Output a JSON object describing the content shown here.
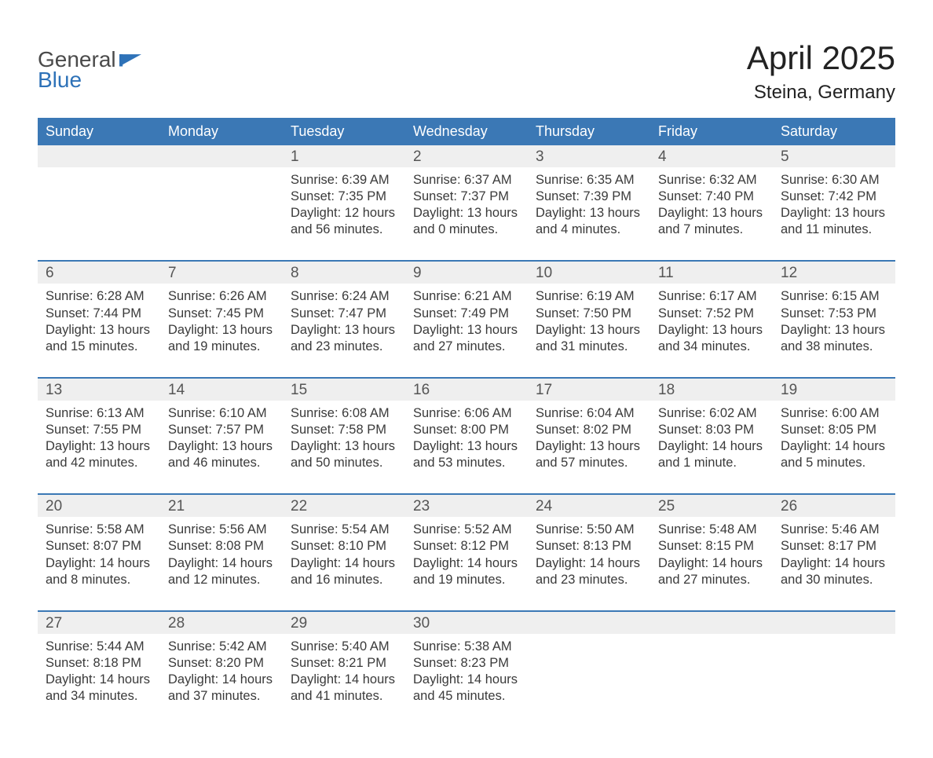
{
  "brand": {
    "word1": "General",
    "word2": "Blue"
  },
  "title": {
    "month": "April 2025",
    "location": "Steina, Germany"
  },
  "colors": {
    "header_bg": "#3b78b5",
    "header_text": "#ffffff",
    "daynum_bg": "#efefef",
    "week_divider": "#3b78b5",
    "text": "#3a3a3a",
    "brand_blue": "#2e72b8",
    "brand_gray": "#4a4a4a",
    "background": "#ffffff"
  },
  "days_of_week": [
    "Sunday",
    "Monday",
    "Tuesday",
    "Wednesday",
    "Thursday",
    "Friday",
    "Saturday"
  ],
  "weeks": [
    [
      {
        "num": "",
        "lines": [
          "",
          "",
          "",
          ""
        ]
      },
      {
        "num": "",
        "lines": [
          "",
          "",
          "",
          ""
        ]
      },
      {
        "num": "1",
        "lines": [
          "Sunrise: 6:39 AM",
          "Sunset: 7:35 PM",
          "Daylight: 12 hours",
          "and 56 minutes."
        ]
      },
      {
        "num": "2",
        "lines": [
          "Sunrise: 6:37 AM",
          "Sunset: 7:37 PM",
          "Daylight: 13 hours",
          "and 0 minutes."
        ]
      },
      {
        "num": "3",
        "lines": [
          "Sunrise: 6:35 AM",
          "Sunset: 7:39 PM",
          "Daylight: 13 hours",
          "and 4 minutes."
        ]
      },
      {
        "num": "4",
        "lines": [
          "Sunrise: 6:32 AM",
          "Sunset: 7:40 PM",
          "Daylight: 13 hours",
          "and 7 minutes."
        ]
      },
      {
        "num": "5",
        "lines": [
          "Sunrise: 6:30 AM",
          "Sunset: 7:42 PM",
          "Daylight: 13 hours",
          "and 11 minutes."
        ]
      }
    ],
    [
      {
        "num": "6",
        "lines": [
          "Sunrise: 6:28 AM",
          "Sunset: 7:44 PM",
          "Daylight: 13 hours",
          "and 15 minutes."
        ]
      },
      {
        "num": "7",
        "lines": [
          "Sunrise: 6:26 AM",
          "Sunset: 7:45 PM",
          "Daylight: 13 hours",
          "and 19 minutes."
        ]
      },
      {
        "num": "8",
        "lines": [
          "Sunrise: 6:24 AM",
          "Sunset: 7:47 PM",
          "Daylight: 13 hours",
          "and 23 minutes."
        ]
      },
      {
        "num": "9",
        "lines": [
          "Sunrise: 6:21 AM",
          "Sunset: 7:49 PM",
          "Daylight: 13 hours",
          "and 27 minutes."
        ]
      },
      {
        "num": "10",
        "lines": [
          "Sunrise: 6:19 AM",
          "Sunset: 7:50 PM",
          "Daylight: 13 hours",
          "and 31 minutes."
        ]
      },
      {
        "num": "11",
        "lines": [
          "Sunrise: 6:17 AM",
          "Sunset: 7:52 PM",
          "Daylight: 13 hours",
          "and 34 minutes."
        ]
      },
      {
        "num": "12",
        "lines": [
          "Sunrise: 6:15 AM",
          "Sunset: 7:53 PM",
          "Daylight: 13 hours",
          "and 38 minutes."
        ]
      }
    ],
    [
      {
        "num": "13",
        "lines": [
          "Sunrise: 6:13 AM",
          "Sunset: 7:55 PM",
          "Daylight: 13 hours",
          "and 42 minutes."
        ]
      },
      {
        "num": "14",
        "lines": [
          "Sunrise: 6:10 AM",
          "Sunset: 7:57 PM",
          "Daylight: 13 hours",
          "and 46 minutes."
        ]
      },
      {
        "num": "15",
        "lines": [
          "Sunrise: 6:08 AM",
          "Sunset: 7:58 PM",
          "Daylight: 13 hours",
          "and 50 minutes."
        ]
      },
      {
        "num": "16",
        "lines": [
          "Sunrise: 6:06 AM",
          "Sunset: 8:00 PM",
          "Daylight: 13 hours",
          "and 53 minutes."
        ]
      },
      {
        "num": "17",
        "lines": [
          "Sunrise: 6:04 AM",
          "Sunset: 8:02 PM",
          "Daylight: 13 hours",
          "and 57 minutes."
        ]
      },
      {
        "num": "18",
        "lines": [
          "Sunrise: 6:02 AM",
          "Sunset: 8:03 PM",
          "Daylight: 14 hours",
          "and 1 minute."
        ]
      },
      {
        "num": "19",
        "lines": [
          "Sunrise: 6:00 AM",
          "Sunset: 8:05 PM",
          "Daylight: 14 hours",
          "and 5 minutes."
        ]
      }
    ],
    [
      {
        "num": "20",
        "lines": [
          "Sunrise: 5:58 AM",
          "Sunset: 8:07 PM",
          "Daylight: 14 hours",
          "and 8 minutes."
        ]
      },
      {
        "num": "21",
        "lines": [
          "Sunrise: 5:56 AM",
          "Sunset: 8:08 PM",
          "Daylight: 14 hours",
          "and 12 minutes."
        ]
      },
      {
        "num": "22",
        "lines": [
          "Sunrise: 5:54 AM",
          "Sunset: 8:10 PM",
          "Daylight: 14 hours",
          "and 16 minutes."
        ]
      },
      {
        "num": "23",
        "lines": [
          "Sunrise: 5:52 AM",
          "Sunset: 8:12 PM",
          "Daylight: 14 hours",
          "and 19 minutes."
        ]
      },
      {
        "num": "24",
        "lines": [
          "Sunrise: 5:50 AM",
          "Sunset: 8:13 PM",
          "Daylight: 14 hours",
          "and 23 minutes."
        ]
      },
      {
        "num": "25",
        "lines": [
          "Sunrise: 5:48 AM",
          "Sunset: 8:15 PM",
          "Daylight: 14 hours",
          "and 27 minutes."
        ]
      },
      {
        "num": "26",
        "lines": [
          "Sunrise: 5:46 AM",
          "Sunset: 8:17 PM",
          "Daylight: 14 hours",
          "and 30 minutes."
        ]
      }
    ],
    [
      {
        "num": "27",
        "lines": [
          "Sunrise: 5:44 AM",
          "Sunset: 8:18 PM",
          "Daylight: 14 hours",
          "and 34 minutes."
        ]
      },
      {
        "num": "28",
        "lines": [
          "Sunrise: 5:42 AM",
          "Sunset: 8:20 PM",
          "Daylight: 14 hours",
          "and 37 minutes."
        ]
      },
      {
        "num": "29",
        "lines": [
          "Sunrise: 5:40 AM",
          "Sunset: 8:21 PM",
          "Daylight: 14 hours",
          "and 41 minutes."
        ]
      },
      {
        "num": "30",
        "lines": [
          "Sunrise: 5:38 AM",
          "Sunset: 8:23 PM",
          "Daylight: 14 hours",
          "and 45 minutes."
        ]
      },
      {
        "num": "",
        "lines": [
          "",
          "",
          "",
          ""
        ]
      },
      {
        "num": "",
        "lines": [
          "",
          "",
          "",
          ""
        ]
      },
      {
        "num": "",
        "lines": [
          "",
          "",
          "",
          ""
        ]
      }
    ]
  ]
}
